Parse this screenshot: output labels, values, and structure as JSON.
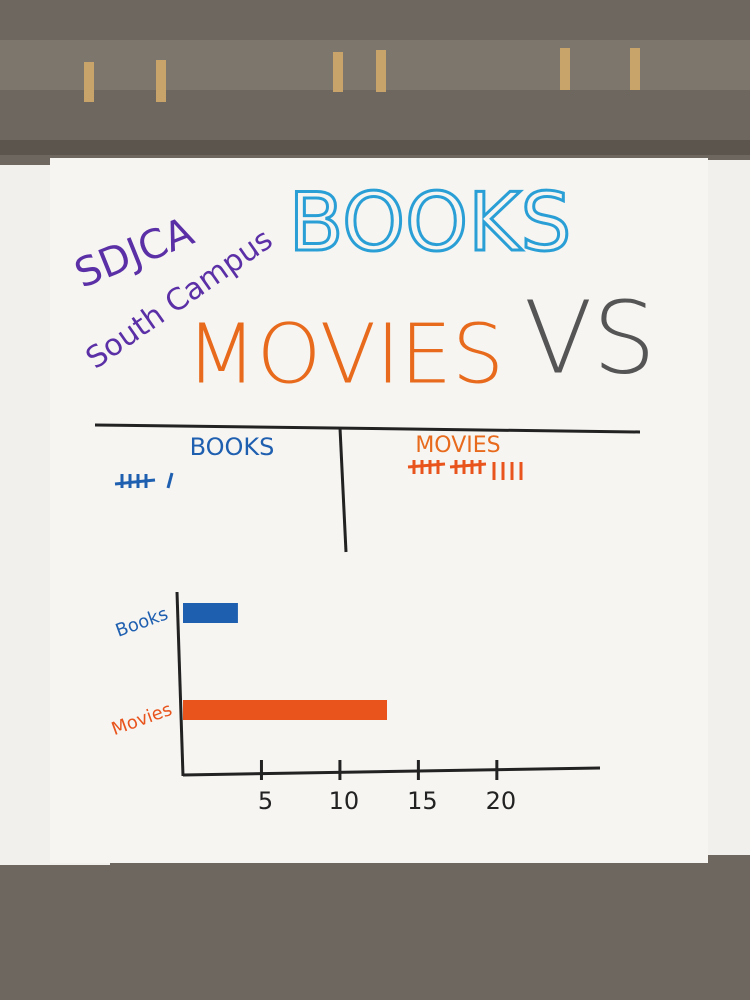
{
  "poster": {
    "school": "SDJCA",
    "campus": "South Campus",
    "title_top": "BOOKS",
    "versus": "VS",
    "title_bottom": "MOVIES",
    "tally_headers": [
      "BOOKS",
      "MOVIES"
    ]
  },
  "chart_data": {
    "type": "hbar",
    "categories": [
      "Books",
      "Movies"
    ],
    "values": [
      3.5,
      13
    ],
    "colors": [
      "#1f5fb0",
      "#e8541c"
    ],
    "xlim": [
      0,
      26
    ],
    "xticks": [
      5,
      10,
      15,
      20
    ]
  }
}
